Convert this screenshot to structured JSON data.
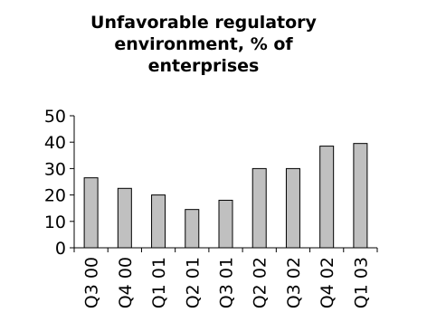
{
  "chart_data": {
    "type": "bar",
    "title_lines": [
      "Unfavorable regulatory",
      "environment, % of",
      "enterprises"
    ],
    "categories": [
      "Q3 00",
      "Q4 00",
      "Q1 01",
      "Q2 01",
      "Q3 01",
      "Q2 02",
      "Q3 02",
      "Q4 02",
      "Q1 03"
    ],
    "values": [
      26.5,
      22.5,
      20,
      14.5,
      18,
      30,
      30,
      38.5,
      39.5
    ],
    "ylim": [
      0,
      50
    ],
    "yticks": [
      0,
      10,
      20,
      30,
      40,
      50
    ],
    "bar_color": "#c0c0c0",
    "bar_edge_color": "#000000",
    "grid": false,
    "legend": "none"
  }
}
